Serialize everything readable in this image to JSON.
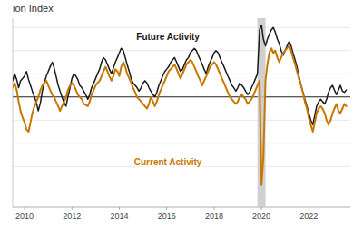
{
  "chart_data": {
    "type": "line",
    "title": "ion Index",
    "xlim": [
      2009.5,
      2023.75
    ],
    "ylim": [
      -95,
      68
    ],
    "xticks": [
      2010,
      2012,
      2014,
      2016,
      2018,
      2020,
      2022
    ],
    "yticks": [
      -60,
      -40,
      -20,
      0,
      20,
      40,
      60
    ],
    "grid": true,
    "tick_labels": "x",
    "shaded_span": {
      "x": [
        2019.83,
        2020.17
      ],
      "color": "#c8c8c8"
    },
    "series": [
      {
        "name": "Future Activity",
        "color": "#1a1a1a",
        "x": [
          2009.5,
          2009.58,
          2009.67,
          2009.75,
          2009.83,
          2009.92,
          2010.0,
          2010.08,
          2010.17,
          2010.25,
          2010.33,
          2010.42,
          2010.5,
          2010.58,
          2010.67,
          2010.75,
          2010.83,
          2010.92,
          2011.0,
          2011.08,
          2011.17,
          2011.25,
          2011.33,
          2011.42,
          2011.5,
          2011.58,
          2011.67,
          2011.75,
          2011.83,
          2011.92,
          2012.0,
          2012.08,
          2012.17,
          2012.25,
          2012.33,
          2012.42,
          2012.5,
          2012.58,
          2012.67,
          2012.75,
          2012.83,
          2012.92,
          2013.0,
          2013.08,
          2013.17,
          2013.25,
          2013.33,
          2013.42,
          2013.5,
          2013.58,
          2013.67,
          2013.75,
          2013.83,
          2013.92,
          2014.0,
          2014.08,
          2014.17,
          2014.25,
          2014.33,
          2014.42,
          2014.5,
          2014.58,
          2014.67,
          2014.75,
          2014.83,
          2014.92,
          2015.0,
          2015.08,
          2015.17,
          2015.25,
          2015.33,
          2015.42,
          2015.5,
          2015.58,
          2015.67,
          2015.75,
          2015.83,
          2015.92,
          2016.0,
          2016.08,
          2016.17,
          2016.25,
          2016.33,
          2016.42,
          2016.5,
          2016.58,
          2016.67,
          2016.75,
          2016.83,
          2016.92,
          2017.0,
          2017.08,
          2017.17,
          2017.25,
          2017.33,
          2017.42,
          2017.5,
          2017.58,
          2017.67,
          2017.75,
          2017.83,
          2017.92,
          2018.0,
          2018.08,
          2018.17,
          2018.25,
          2018.33,
          2018.42,
          2018.5,
          2018.58,
          2018.67,
          2018.75,
          2018.83,
          2018.92,
          2019.0,
          2019.08,
          2019.17,
          2019.25,
          2019.33,
          2019.42,
          2019.5,
          2019.58,
          2019.67,
          2019.75,
          2019.83,
          2019.92,
          2020.0,
          2020.08,
          2020.17,
          2020.25,
          2020.33,
          2020.42,
          2020.5,
          2020.58,
          2020.67,
          2020.75,
          2020.83,
          2020.92,
          2021.0,
          2021.08,
          2021.17,
          2021.25,
          2021.33,
          2021.42,
          2021.5,
          2021.58,
          2021.67,
          2021.75,
          2021.83,
          2021.92,
          2022.0,
          2022.08,
          2022.17,
          2022.25,
          2022.33,
          2022.42,
          2022.5,
          2022.58,
          2022.67,
          2022.75,
          2022.83,
          2022.92,
          2023.0,
          2023.08,
          2023.17,
          2023.25,
          2023.33,
          2023.42,
          2023.5,
          2023.58
        ],
        "values": [
          14,
          20,
          15,
          8,
          14,
          16,
          18,
          22,
          15,
          10,
          5,
          0,
          -5,
          -12,
          -5,
          5,
          12,
          18,
          22,
          26,
          30,
          25,
          18,
          10,
          5,
          0,
          -5,
          -8,
          0,
          8,
          16,
          20,
          18,
          15,
          10,
          8,
          5,
          2,
          -2,
          2,
          8,
          12,
          16,
          20,
          24,
          30,
          34,
          32,
          28,
          24,
          20,
          25,
          30,
          34,
          38,
          42,
          40,
          34,
          28,
          22,
          16,
          12,
          10,
          8,
          5,
          8,
          12,
          14,
          12,
          8,
          5,
          2,
          0,
          4,
          10,
          14,
          18,
          22,
          24,
          26,
          30,
          32,
          34,
          30,
          26,
          22,
          24,
          28,
          32,
          34,
          38,
          40,
          42,
          40,
          36,
          32,
          28,
          24,
          20,
          26,
          30,
          34,
          38,
          40,
          38,
          34,
          30,
          26,
          22,
          18,
          14,
          10,
          8,
          5,
          8,
          12,
          10,
          8,
          5,
          2,
          4,
          8,
          12,
          16,
          20,
          58,
          62,
          50,
          44,
          50,
          54,
          58,
          60,
          56,
          50,
          46,
          40,
          36,
          40,
          44,
          48,
          44,
          38,
          32,
          26,
          18,
          10,
          4,
          -2,
          -8,
          -14,
          -20,
          -24,
          -16,
          -8,
          -4,
          -2,
          -4,
          -6,
          -2,
          4,
          8,
          10,
          6,
          2,
          6,
          10,
          5,
          4,
          6
        ]
      },
      {
        "name": "Current Activity",
        "color": "#c87800",
        "x": [
          2009.5,
          2009.58,
          2009.67,
          2009.75,
          2009.83,
          2009.92,
          2010.0,
          2010.08,
          2010.17,
          2010.25,
          2010.33,
          2010.42,
          2010.5,
          2010.58,
          2010.67,
          2010.75,
          2010.83,
          2010.92,
          2011.0,
          2011.08,
          2011.17,
          2011.25,
          2011.33,
          2011.42,
          2011.5,
          2011.58,
          2011.67,
          2011.75,
          2011.83,
          2011.92,
          2012.0,
          2012.08,
          2012.17,
          2012.25,
          2012.33,
          2012.42,
          2012.5,
          2012.67,
          2012.75,
          2012.83,
          2012.92,
          2013.0,
          2013.08,
          2013.17,
          2013.25,
          2013.33,
          2013.42,
          2013.5,
          2013.58,
          2013.67,
          2013.75,
          2013.83,
          2013.92,
          2014.0,
          2014.08,
          2014.17,
          2014.25,
          2014.33,
          2014.42,
          2014.5,
          2014.58,
          2014.67,
          2014.75,
          2014.83,
          2014.92,
          2015.0,
          2015.08,
          2015.17,
          2015.25,
          2015.33,
          2015.42,
          2015.5,
          2015.58,
          2015.67,
          2015.75,
          2015.83,
          2015.92,
          2016.0,
          2016.08,
          2016.17,
          2016.25,
          2016.33,
          2016.42,
          2016.5,
          2016.58,
          2016.67,
          2016.75,
          2016.83,
          2016.92,
          2017.0,
          2017.08,
          2017.17,
          2017.25,
          2017.33,
          2017.42,
          2017.5,
          2017.58,
          2017.67,
          2017.75,
          2017.83,
          2017.92,
          2018.0,
          2018.08,
          2018.17,
          2018.25,
          2018.33,
          2018.42,
          2018.5,
          2018.58,
          2018.67,
          2018.75,
          2018.83,
          2018.92,
          2019.0,
          2019.08,
          2019.17,
          2019.25,
          2019.33,
          2019.42,
          2019.5,
          2019.58,
          2019.67,
          2019.75,
          2019.83,
          2019.92,
          2020.0,
          2020.08,
          2020.17,
          2020.25,
          2020.33,
          2020.42,
          2020.5,
          2020.58,
          2020.67,
          2020.75,
          2020.83,
          2020.92,
          2021.0,
          2021.08,
          2021.17,
          2021.25,
          2021.33,
          2021.42,
          2021.5,
          2021.58,
          2021.67,
          2021.75,
          2021.83,
          2021.92,
          2022.0,
          2022.08,
          2022.17,
          2022.25,
          2022.33,
          2022.42,
          2022.5,
          2022.58,
          2022.67,
          2022.75,
          2022.83,
          2022.92,
          2023.0,
          2023.08,
          2023.17,
          2023.25,
          2023.33,
          2023.42,
          2023.5,
          2023.58
        ],
        "values": [
          8,
          12,
          6,
          -4,
          -12,
          -18,
          -22,
          -28,
          -30,
          -22,
          -14,
          -8,
          -4,
          0,
          6,
          10,
          12,
          14,
          10,
          6,
          2,
          0,
          -4,
          -8,
          -12,
          -8,
          -4,
          0,
          6,
          10,
          12,
          10,
          6,
          2,
          0,
          -2,
          -6,
          -8,
          -4,
          2,
          6,
          10,
          12,
          14,
          18,
          22,
          26,
          22,
          18,
          14,
          18,
          24,
          22,
          18,
          26,
          30,
          26,
          20,
          16,
          12,
          8,
          4,
          0,
          -2,
          -4,
          -6,
          -8,
          -10,
          -6,
          0,
          -4,
          -8,
          -4,
          2,
          6,
          10,
          14,
          18,
          22,
          24,
          26,
          28,
          24,
          20,
          16,
          20,
          24,
          28,
          30,
          32,
          30,
          26,
          22,
          18,
          14,
          10,
          14,
          18,
          22,
          26,
          28,
          30,
          28,
          24,
          20,
          16,
          12,
          8,
          4,
          0,
          -2,
          -4,
          -6,
          -4,
          0,
          2,
          0,
          -2,
          -6,
          -4,
          -2,
          2,
          6,
          10,
          14,
          -76,
          -52,
          14,
          28,
          38,
          42,
          38,
          40,
          34,
          30,
          34,
          38,
          40,
          42,
          44,
          40,
          34,
          28,
          22,
          16,
          10,
          4,
          -4,
          -10,
          -18,
          -24,
          -30,
          -22,
          -14,
          -10,
          -8,
          -10,
          -14,
          -20,
          -24,
          -20,
          -14,
          -10,
          -6,
          -12,
          -14,
          -10,
          -6,
          -8
        ]
      }
    ]
  }
}
